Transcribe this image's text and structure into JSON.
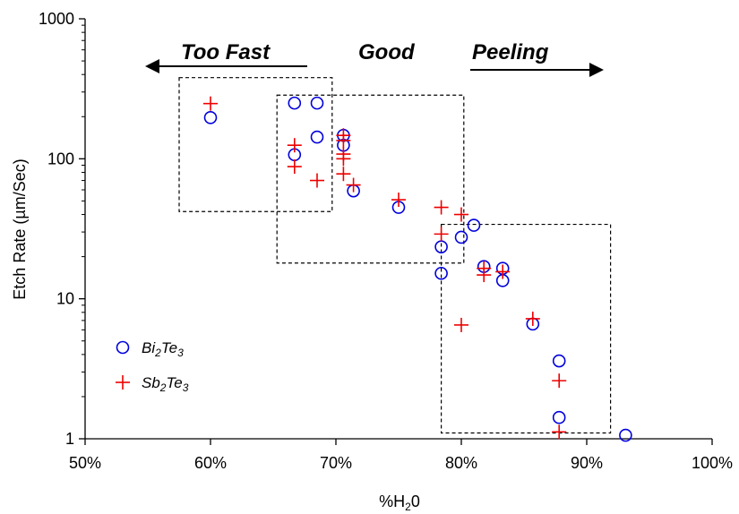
{
  "chart_data": {
    "type": "scatter",
    "xlabel_main": "%H",
    "xlabel_sub": "2",
    "xlabel_tail": "0",
    "ylabel": "Etch Rate (µm/Sec)",
    "xlim": [
      50,
      100
    ],
    "ylim": [
      1,
      1000
    ],
    "y_scale": "log",
    "x_ticks": [
      50,
      60,
      70,
      80,
      90,
      100
    ],
    "x_tick_labels": [
      "50%",
      "60%",
      "70%",
      "80%",
      "90%",
      "100%"
    ],
    "y_ticks": [
      1,
      10,
      100,
      1000
    ],
    "y_tick_labels": [
      "1",
      "10",
      "100",
      "1000"
    ],
    "grid": false,
    "legend_position": "bottom-left",
    "series": [
      {
        "name_parts": [
          "Bi",
          "2",
          "Te",
          "3"
        ],
        "marker": "circle",
        "color": "#0000dd",
        "points": [
          [
            60.0,
            197
          ],
          [
            66.7,
            250
          ],
          [
            68.5,
            250
          ],
          [
            68.5,
            143
          ],
          [
            66.7,
            107
          ],
          [
            70.6,
            147
          ],
          [
            70.6,
            125
          ],
          [
            71.4,
            59
          ],
          [
            75.0,
            45
          ],
          [
            78.4,
            23.5
          ],
          [
            78.4,
            15.2
          ],
          [
            80.0,
            27.5
          ],
          [
            81.0,
            33.5
          ],
          [
            81.8,
            17.0
          ],
          [
            83.3,
            16.5
          ],
          [
            83.3,
            13.5
          ],
          [
            85.7,
            6.6
          ],
          [
            87.8,
            3.6
          ],
          [
            87.8,
            1.42
          ],
          [
            93.1,
            1.06
          ]
        ]
      },
      {
        "name_parts": [
          "Sb",
          "2",
          "Te",
          "3"
        ],
        "marker": "plus",
        "color": "#ee0000",
        "points": [
          [
            60.0,
            248
          ],
          [
            66.7,
            125
          ],
          [
            66.7,
            88
          ],
          [
            68.5,
            70
          ],
          [
            70.6,
            147
          ],
          [
            70.6,
            135
          ],
          [
            70.6,
            108
          ],
          [
            70.6,
            100
          ],
          [
            70.6,
            78
          ],
          [
            71.4,
            65
          ],
          [
            75.0,
            51
          ],
          [
            78.4,
            45
          ],
          [
            78.4,
            29
          ],
          [
            80.0,
            40
          ],
          [
            80.0,
            6.5
          ],
          [
            81.8,
            16.5
          ],
          [
            81.8,
            14.8
          ],
          [
            83.3,
            15.6
          ],
          [
            85.7,
            7.2
          ],
          [
            87.8,
            2.6
          ],
          [
            87.8,
            1.12
          ]
        ]
      }
    ],
    "annotations": {
      "too_fast": "Too Fast",
      "good": "Good",
      "peeling": "Peeling"
    },
    "regions": [
      {
        "name": "too-fast-region",
        "x": [
          57.5,
          69.7
        ],
        "y": [
          42,
          380
        ]
      },
      {
        "name": "good-region",
        "x": [
          65.3,
          80.2
        ],
        "y": [
          18,
          285
        ]
      },
      {
        "name": "peeling-region",
        "x": [
          78.4,
          91.9
        ],
        "y": [
          1.1,
          34
        ]
      }
    ]
  }
}
